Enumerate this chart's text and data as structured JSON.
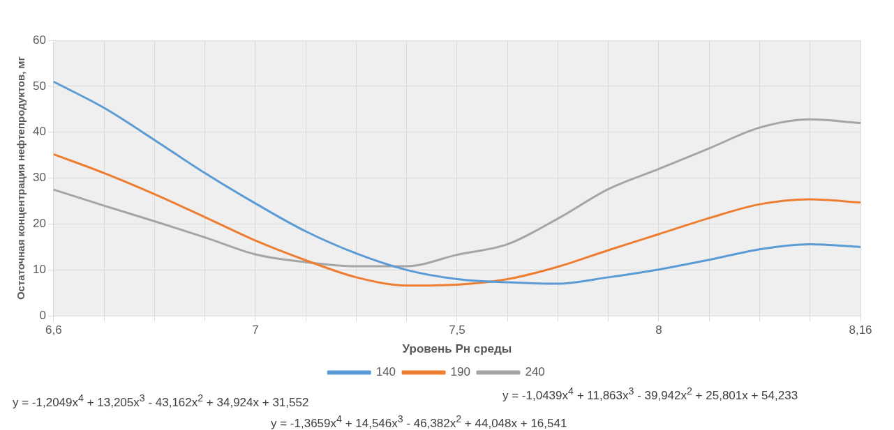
{
  "chart_data": {
    "type": "line",
    "xlabel": "Уровень Рн среды",
    "ylabel": "Остаточная концентрация нефтепродуктов, мг",
    "categories": [
      "6,6",
      null,
      null,
      null,
      "7",
      null,
      null,
      null,
      "7,5",
      null,
      null,
      null,
      "8",
      null,
      null,
      null,
      "8,16"
    ],
    "series": [
      {
        "name": "140",
        "color": "#5b9bd5",
        "values": [
          51,
          45.3,
          38.3,
          31.1,
          24.5,
          18.4,
          13.6,
          10,
          8,
          7.3,
          7,
          8.4,
          10.1,
          12.2,
          14.5,
          15.6,
          15
        ]
      },
      {
        "name": "190",
        "color": "#ed7d31",
        "values": [
          35.2,
          31.1,
          26.5,
          21.5,
          16.4,
          12.1,
          8.4,
          6.6,
          6.8,
          8,
          10.7,
          14.3,
          17.8,
          21.3,
          24.3,
          25.4,
          24.7
        ]
      },
      {
        "name": "240",
        "color": "#a5a5a5",
        "values": [
          27.5,
          24,
          20.6,
          17.1,
          13.4,
          11.7,
          10.8,
          10.8,
          13.3,
          15.6,
          21.2,
          27.6,
          32,
          36.5,
          41,
          42.8,
          42
        ]
      }
    ],
    "ylim": [
      0,
      60
    ],
    "yticks": [
      0,
      10,
      20,
      30,
      40,
      50,
      60
    ],
    "grid": true,
    "legend": "bottom",
    "marker": "none",
    "line_style": "solid",
    "annotations": [
      "y = -1,2049x$^{4}$ + 13,205x$^{3}$ - 43,162x$^{2}$ + 34,924x + 31,552",
      "y = -1,0439x$^{4}$ + 11,863x$^{3}$ - 39,942x$^{2}$ + 25,801x + 54,233",
      "y = -1,3659x$^{4}$ + 14,546x$^{3}$ - 46,382x$^{2}$ + 44,048x + 16,541"
    ]
  }
}
